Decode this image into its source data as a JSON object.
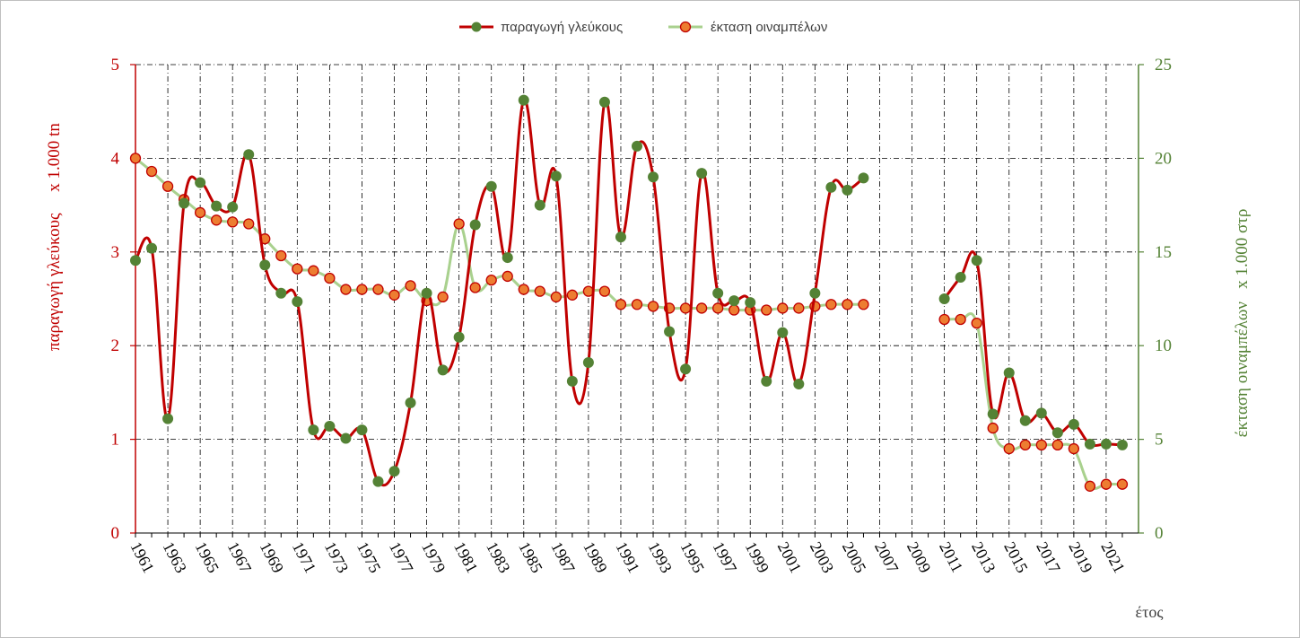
{
  "chart_data": {
    "type": "line",
    "x_title": "έτος",
    "y_left_title": "παραγωγή γλεύκους     x 1.000 tn",
    "y_right_title": "έκταση οιναμπέλων   x 1.000 στρ",
    "y_left_range": [
      0,
      5
    ],
    "y_left_ticks": [
      "0",
      "1",
      "2",
      "3",
      "4",
      "5"
    ],
    "y_right_range": [
      0,
      25
    ],
    "y_right_ticks": [
      "0",
      "5",
      "10",
      "15",
      "20",
      "25"
    ],
    "x_tick_labels": [
      "1961",
      "1963",
      "1965",
      "1967",
      "1969",
      "1971",
      "1973",
      "1975",
      "1977",
      "1979",
      "1981",
      "1983",
      "1985",
      "1987",
      "1989",
      "1991",
      "1993",
      "1995",
      "1997",
      "1999",
      "2001",
      "2003",
      "2005",
      "2007",
      "2009",
      "2011",
      "2013",
      "2015",
      "2017",
      "2019",
      "2021"
    ],
    "x_range": [
      1961,
      2022
    ],
    "grid": true,
    "legend_position": "top-center",
    "colors": {
      "production_line": "#c00000",
      "production_marker": "#548235",
      "area_line": "#a9d18e",
      "area_marker_fill": "#ed7d31",
      "area_marker_stroke": "#c00000",
      "left_axis": "#c00000",
      "right_axis": "#548235"
    },
    "series": [
      {
        "name": "παραγωγή γλεύκους",
        "axis": "left",
        "x": [
          1961,
          1962,
          1963,
          1964,
          1965,
          1966,
          1967,
          1968,
          1969,
          1970,
          1971,
          1972,
          1973,
          1974,
          1975,
          1976,
          1977,
          1978,
          1979,
          1980,
          1981,
          1982,
          1983,
          1984,
          1985,
          1986,
          1987,
          1988,
          1989,
          1990,
          1991,
          1992,
          1993,
          1994,
          1995,
          1996,
          1997,
          1998,
          1999,
          2000,
          2001,
          2002,
          2003,
          2004,
          2005,
          2006,
          null,
          2011,
          2012,
          2013,
          2014,
          2015,
          2016,
          2017,
          2018,
          2019,
          2020,
          2021,
          2022
        ],
        "values": [
          2.91,
          3.04,
          1.22,
          3.52,
          3.74,
          3.49,
          3.48,
          4.04,
          2.86,
          2.56,
          2.47,
          1.1,
          1.14,
          1.01,
          1.1,
          0.55,
          0.66,
          1.39,
          2.56,
          1.74,
          2.09,
          3.29,
          3.7,
          2.94,
          4.62,
          3.5,
          3.81,
          1.62,
          1.82,
          4.6,
          3.16,
          4.13,
          3.8,
          2.15,
          1.75,
          3.84,
          2.56,
          2.48,
          2.46,
          1.62,
          2.14,
          1.59,
          2.56,
          3.69,
          3.66,
          3.79,
          null,
          2.5,
          2.73,
          2.91,
          1.27,
          1.71,
          1.2,
          1.28,
          1.07,
          1.16,
          0.95,
          0.95,
          0.94
        ]
      },
      {
        "name": "έκταση οιναμπέλων",
        "axis": "right",
        "x": [
          1961,
          1962,
          1963,
          1964,
          1965,
          1966,
          1967,
          1968,
          1969,
          1970,
          1971,
          1972,
          1973,
          1974,
          1975,
          1976,
          1977,
          1978,
          1979,
          1980,
          1981,
          1982,
          1983,
          1984,
          1985,
          1986,
          1987,
          1988,
          1989,
          1990,
          1991,
          1992,
          1993,
          1994,
          1995,
          1996,
          1997,
          1998,
          1999,
          2000,
          2001,
          2002,
          2003,
          2004,
          2005,
          2006,
          null,
          2011,
          2012,
          2013,
          2014,
          2015,
          2016,
          2017,
          2018,
          2019,
          2020,
          2021,
          2022
        ],
        "values": [
          20.0,
          19.3,
          18.5,
          17.8,
          17.1,
          16.7,
          16.6,
          16.5,
          15.7,
          14.8,
          14.1,
          14.0,
          13.6,
          13.0,
          13.0,
          13.0,
          12.7,
          13.2,
          12.4,
          12.6,
          16.5,
          13.1,
          13.5,
          13.7,
          13.0,
          12.9,
          12.6,
          12.7,
          12.9,
          12.9,
          12.2,
          12.2,
          12.1,
          12.0,
          12.0,
          12.0,
          12.0,
          11.9,
          11.9,
          11.9,
          12.0,
          12.0,
          12.1,
          12.2,
          12.2,
          12.2,
          null,
          11.4,
          11.4,
          11.2,
          5.6,
          4.5,
          4.7,
          4.7,
          4.7,
          4.5,
          2.5,
          2.6,
          2.6
        ]
      }
    ]
  }
}
